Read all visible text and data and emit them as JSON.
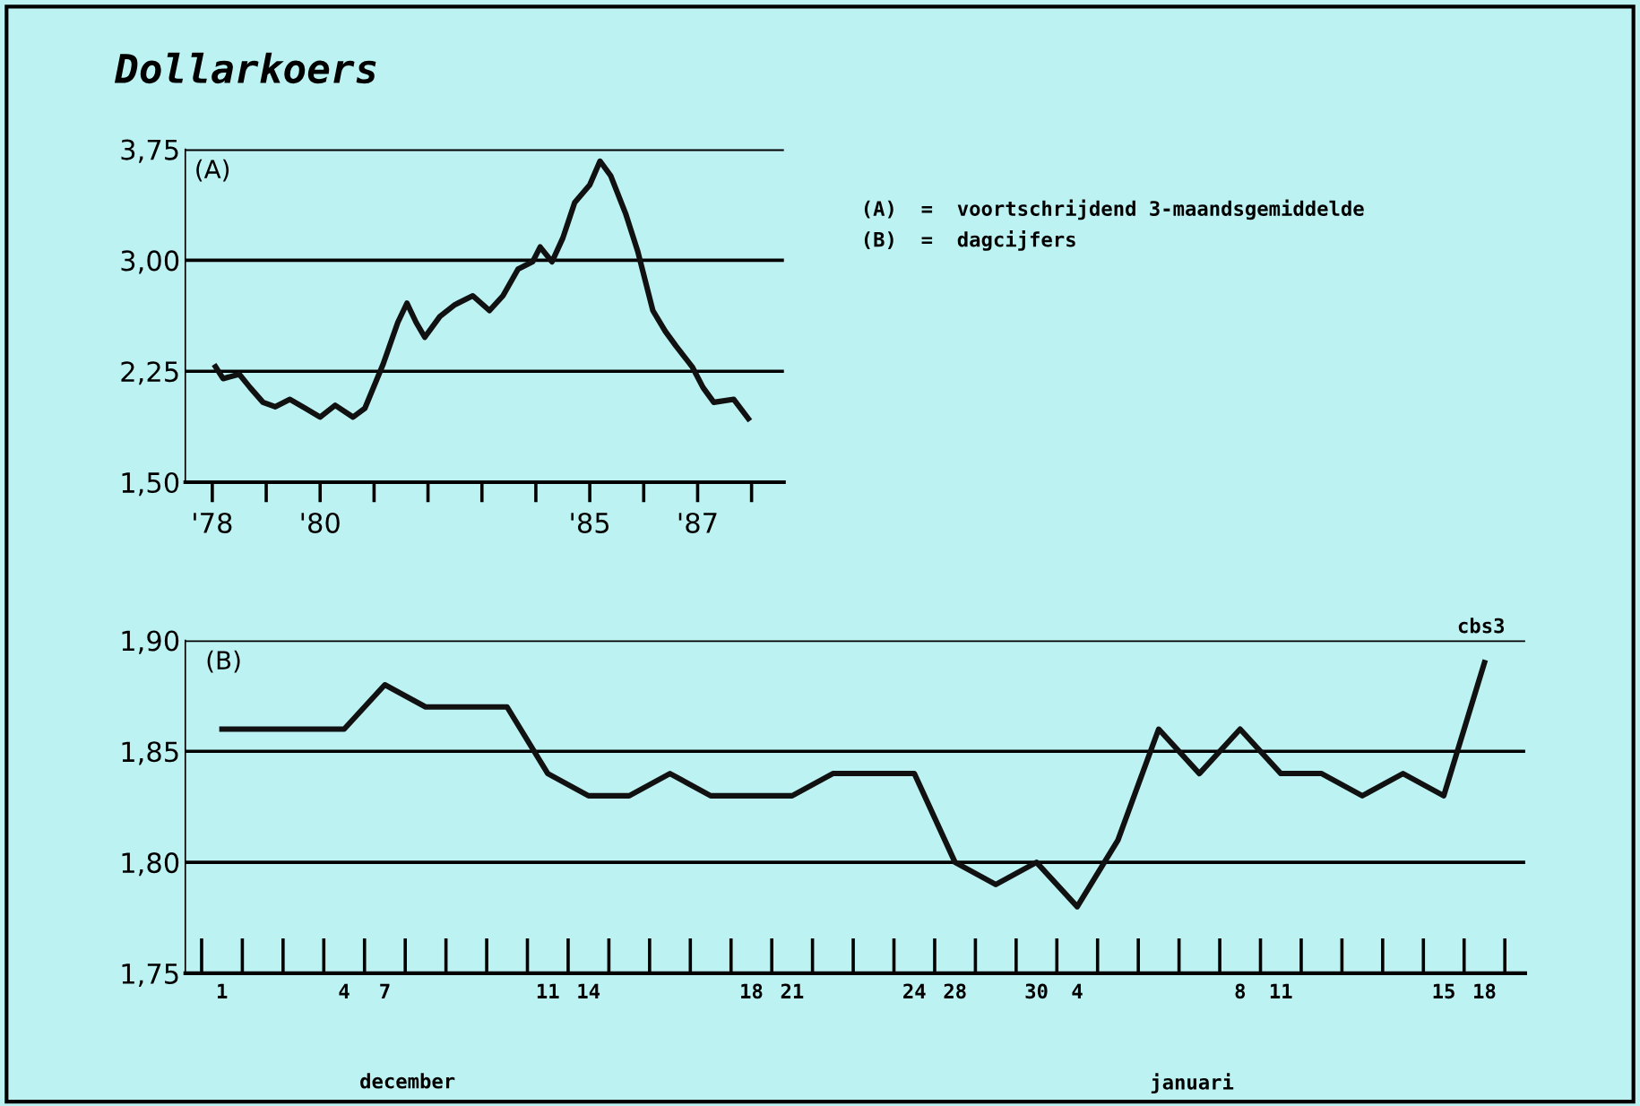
{
  "chart_data": [
    {
      "type": "line",
      "title": "Dollarkoers",
      "color": "#111111",
      "grid": "y",
      "x": [
        1978.06,
        1978.2,
        1978.5,
        1978.7,
        1978.94,
        1979.17,
        1979.44,
        1979.72,
        1980.0,
        1980.28,
        1980.61,
        1980.83,
        1981.17,
        1981.44,
        1981.61,
        1981.78,
        1981.94,
        1982.22,
        1982.5,
        1982.83,
        1983.14,
        1983.39,
        1983.67,
        1983.94,
        1984.08,
        1984.3,
        1984.5,
        1984.72,
        1985.0,
        1985.19,
        1985.39,
        1985.67,
        1985.89,
        1986.17,
        1986.4,
        1986.6,
        1986.9,
        1987.1,
        1987.3,
        1987.67,
        1987.94
      ],
      "values": [
        2.28,
        2.2,
        2.23,
        2.14,
        2.04,
        2.01,
        2.06,
        2.0,
        1.94,
        2.02,
        1.94,
        2.0,
        2.3,
        2.58,
        2.71,
        2.58,
        2.48,
        2.62,
        2.7,
        2.76,
        2.66,
        2.76,
        2.94,
        2.99,
        3.09,
        2.99,
        3.15,
        3.39,
        3.51,
        3.67,
        3.57,
        3.31,
        3.06,
        2.66,
        2.52,
        2.42,
        2.28,
        2.14,
        2.04,
        2.06,
        1.93
      ],
      "xlim": [
        1977.5,
        1988.6
      ],
      "xticks": [
        {
          "value": 1978,
          "label": "'78"
        },
        {
          "value": 1979,
          "label": null
        },
        {
          "value": 1980,
          "label": "'80"
        },
        {
          "value": 1981,
          "label": null
        },
        {
          "value": 1982,
          "label": null
        },
        {
          "value": 1983,
          "label": null
        },
        {
          "value": 1984,
          "label": null
        },
        {
          "value": 1985,
          "label": "'85"
        },
        {
          "value": 1986,
          "label": null
        },
        {
          "value": 1987,
          "label": "'87"
        },
        {
          "value": 1988,
          "label": null
        }
      ],
      "ylim": [
        1.5,
        3.75
      ],
      "yticks": [
        {
          "value": 1.5,
          "label": "1,50"
        },
        {
          "value": 2.25,
          "label": "2,25"
        },
        {
          "value": 3.0,
          "label": "3,00"
        },
        {
          "value": 3.75,
          "label": "3,75"
        }
      ],
      "annotations": [
        "(A)",
        "(A)  =  voortschrijdend 3-maandsgemiddelde",
        "(B)  =  dagcijfers"
      ]
    },
    {
      "type": "line",
      "color": "#111111",
      "grid": "y",
      "categories": [
        "1",
        null,
        null,
        "4",
        "7",
        null,
        null,
        null,
        "11",
        "14",
        null,
        null,
        null,
        "18",
        "21",
        null,
        null,
        "24",
        "28",
        null,
        "30",
        "4",
        null,
        null,
        null,
        "8",
        "11",
        null,
        null,
        null,
        "15",
        "18"
      ],
      "values": [
        1.86,
        1.86,
        1.86,
        1.86,
        1.88,
        1.87,
        1.87,
        1.87,
        1.84,
        1.83,
        1.83,
        1.84,
        1.83,
        1.83,
        1.83,
        1.84,
        1.84,
        1.84,
        1.8,
        1.79,
        1.8,
        1.78,
        1.81,
        1.86,
        1.84,
        1.86,
        1.84,
        1.84,
        1.83,
        1.84,
        1.83,
        1.89
      ],
      "ylim": [
        1.75,
        1.9
      ],
      "yticks": [
        {
          "value": 1.75,
          "label": "1,75"
        },
        {
          "value": 1.8,
          "label": "1,80"
        },
        {
          "value": 1.85,
          "label": "1,85"
        },
        {
          "value": 1.9,
          "label": "1,90"
        }
      ],
      "annotations": [
        "(B)",
        "cbs3",
        "december",
        "januari"
      ]
    }
  ]
}
